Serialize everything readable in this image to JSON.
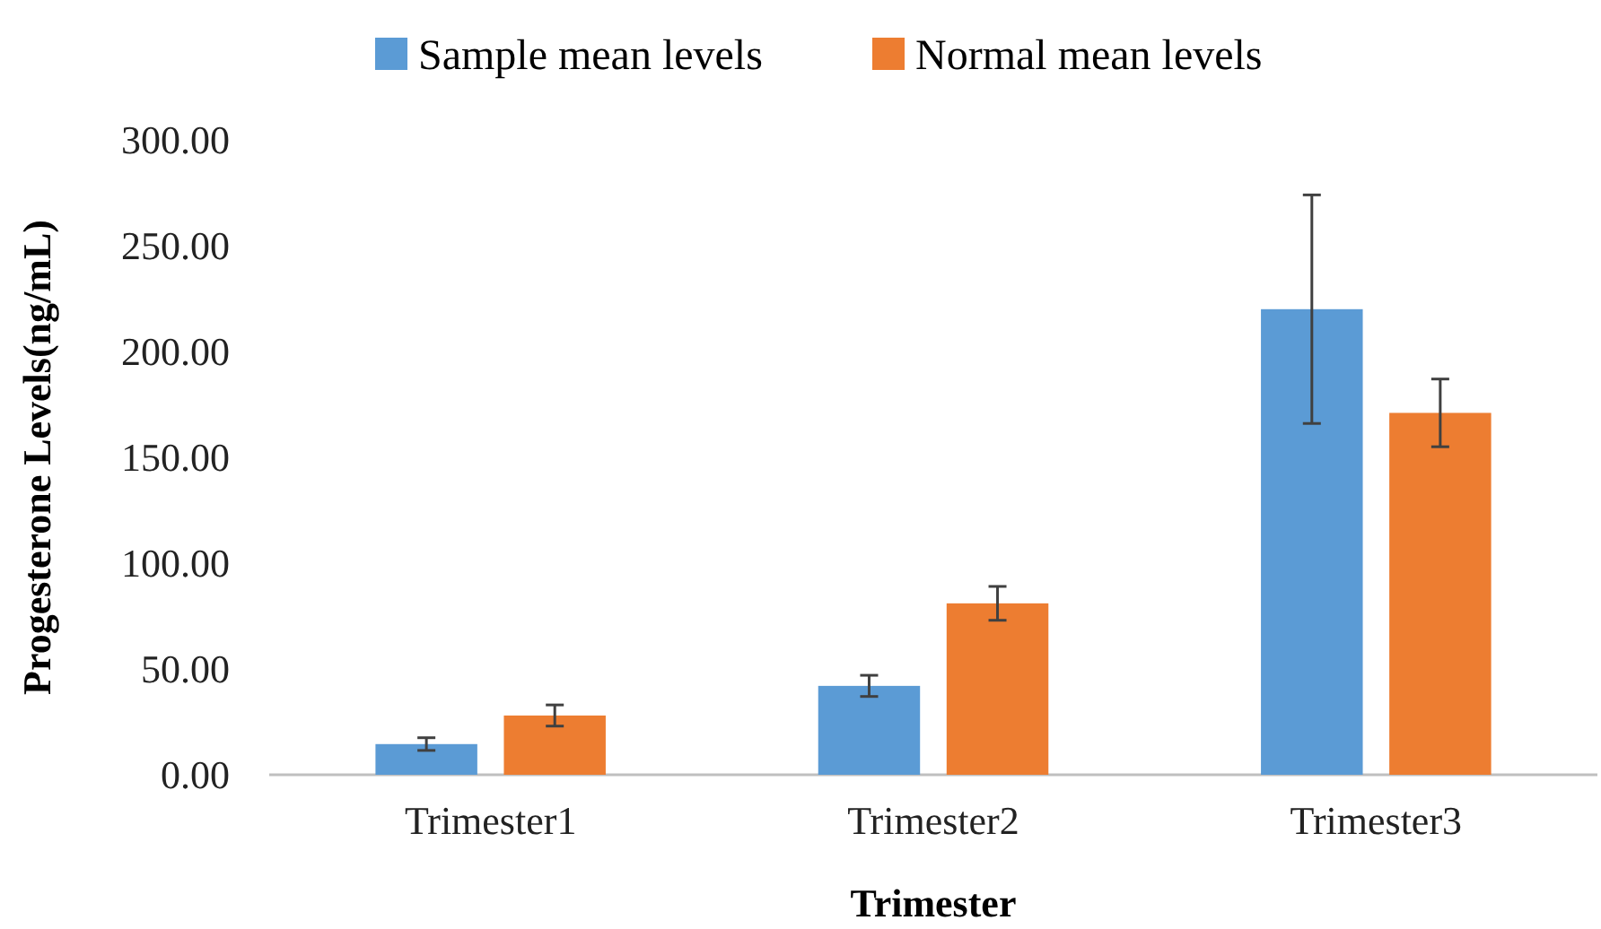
{
  "chart_data": {
    "type": "bar",
    "xlabel": "Trimester",
    "ylabel": "Progesterone Levels(ng/mL)",
    "categories": [
      "Trimester1",
      "Trimester2",
      "Trimester3"
    ],
    "series": [
      {
        "name": "Sample mean levels",
        "color": "#5b9bd5",
        "values": [
          14.5,
          42,
          220
        ],
        "errors": [
          3,
          5,
          54
        ]
      },
      {
        "name": "Normal mean levels",
        "color": "#ed7d31",
        "values": [
          28,
          81,
          171
        ],
        "errors": [
          5,
          8,
          16
        ]
      }
    ],
    "ylim": [
      0,
      300
    ],
    "yticks": [
      {
        "value": 0,
        "label": "0.00"
      },
      {
        "value": 50,
        "label": "50.00"
      },
      {
        "value": 100,
        "label": "100.00"
      },
      {
        "value": 150,
        "label": "150.00"
      },
      {
        "value": 200,
        "label": "200.00"
      },
      {
        "value": 250,
        "label": "250.00"
      },
      {
        "value": 300,
        "label": "300.00"
      }
    ],
    "grid": false,
    "legend": "top"
  }
}
